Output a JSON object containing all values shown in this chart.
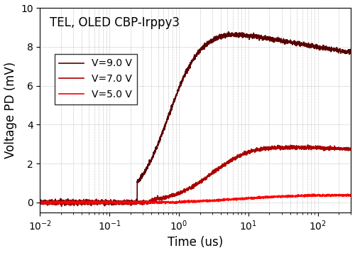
{
  "title": "TEL, OLED CBP-Irppy3",
  "xlabel": "Time (us)",
  "ylabel": "Voltage PD (mV)",
  "xlim": [
    0.01,
    300
  ],
  "ylim": [
    -0.5,
    10
  ],
  "yticks": [
    0,
    2,
    4,
    6,
    8,
    10
  ],
  "legend": [
    {
      "label": "V=9.0 V",
      "color": "#5a0000",
      "lw": 1.2
    },
    {
      "label": "V=7.0 V",
      "color": "#aa0000",
      "lw": 1.2
    },
    {
      "label": "V=5.0 V",
      "color": "#ff0000",
      "lw": 1.2
    }
  ],
  "background_color": "#ffffff",
  "grid_color": "#888888",
  "title_fontsize": 12,
  "label_fontsize": 12,
  "tick_fontsize": 10
}
